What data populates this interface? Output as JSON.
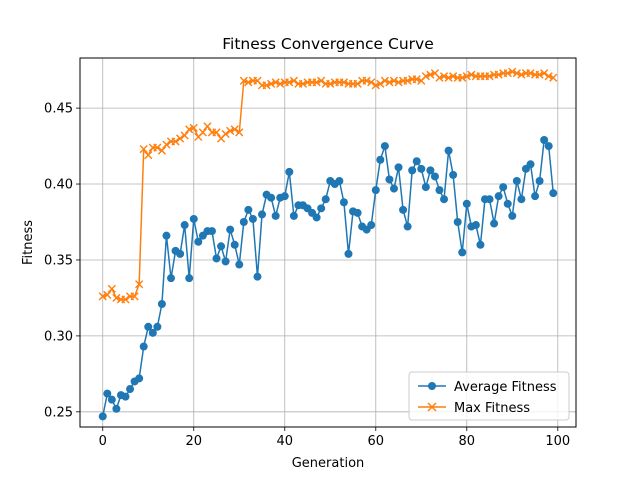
{
  "chart_data": {
    "type": "line",
    "title": "Fitness Convergence Curve",
    "xlabel": "Generation",
    "ylabel": "Fitness",
    "xlim": [
      -5,
      104
    ],
    "ylim": [
      0.24,
      0.483
    ],
    "xticks": [
      0,
      20,
      40,
      60,
      80,
      100
    ],
    "yticks": [
      0.25,
      0.3,
      0.35,
      0.4,
      0.45
    ],
    "xtick_labels": [
      "0",
      "20",
      "40",
      "60",
      "80",
      "100"
    ],
    "ytick_labels": [
      "0.25",
      "0.30",
      "0.35",
      "0.40",
      "0.45"
    ],
    "grid": true,
    "legend_position": "lower-right",
    "x": [
      0,
      1,
      2,
      3,
      4,
      5,
      6,
      7,
      8,
      9,
      10,
      11,
      12,
      13,
      14,
      15,
      16,
      17,
      18,
      19,
      20,
      21,
      22,
      23,
      24,
      25,
      26,
      27,
      28,
      29,
      30,
      31,
      32,
      33,
      34,
      35,
      36,
      37,
      38,
      39,
      40,
      41,
      42,
      43,
      44,
      45,
      46,
      47,
      48,
      49,
      50,
      51,
      52,
      53,
      54,
      55,
      56,
      57,
      58,
      59,
      60,
      61,
      62,
      63,
      64,
      65,
      66,
      67,
      68,
      69,
      70,
      71,
      72,
      73,
      74,
      75,
      76,
      77,
      78,
      79,
      80,
      81,
      82,
      83,
      84,
      85,
      86,
      87,
      88,
      89,
      90,
      91,
      92,
      93,
      94,
      95,
      96,
      97,
      98,
      99
    ],
    "series": [
      {
        "name": "Average Fitness",
        "color": "#1f77b4",
        "marker": "circle",
        "values": [
          0.247,
          0.262,
          0.258,
          0.252,
          0.261,
          0.26,
          0.265,
          0.27,
          0.272,
          0.293,
          0.306,
          0.302,
          0.306,
          0.321,
          0.366,
          0.338,
          0.356,
          0.354,
          0.373,
          0.338,
          0.377,
          0.362,
          0.366,
          0.369,
          0.369,
          0.351,
          0.359,
          0.349,
          0.37,
          0.36,
          0.347,
          0.375,
          0.383,
          0.377,
          0.339,
          0.38,
          0.393,
          0.391,
          0.379,
          0.391,
          0.392,
          0.408,
          0.379,
          0.386,
          0.386,
          0.384,
          0.381,
          0.378,
          0.384,
          0.39,
          0.402,
          0.4,
          0.402,
          0.388,
          0.354,
          0.382,
          0.381,
          0.372,
          0.37,
          0.373,
          0.396,
          0.416,
          0.425,
          0.403,
          0.397,
          0.411,
          0.383,
          0.372,
          0.409,
          0.415,
          0.41,
          0.398,
          0.409,
          0.405,
          0.396,
          0.39,
          0.422,
          0.406,
          0.375,
          0.355,
          0.387,
          0.372,
          0.373,
          0.36,
          0.39,
          0.39,
          0.374,
          0.392,
          0.398,
          0.387,
          0.379,
          0.402,
          0.39,
          0.41,
          0.413,
          0.392,
          0.402,
          0.429,
          0.425,
          0.394
        ]
      },
      {
        "name": "Max Fitness",
        "color": "#ff7f0e",
        "marker": "x",
        "values": [
          0.326,
          0.327,
          0.331,
          0.325,
          0.324,
          0.324,
          0.326,
          0.326,
          0.334,
          0.423,
          0.419,
          0.424,
          0.424,
          0.422,
          0.426,
          0.428,
          0.428,
          0.43,
          0.432,
          0.436,
          0.437,
          0.431,
          0.434,
          0.438,
          0.434,
          0.434,
          0.43,
          0.433,
          0.435,
          0.436,
          0.434,
          0.468,
          0.467,
          0.468,
          0.468,
          0.465,
          0.465,
          0.466,
          0.467,
          0.466,
          0.467,
          0.467,
          0.468,
          0.466,
          0.466,
          0.467,
          0.467,
          0.467,
          0.468,
          0.466,
          0.466,
          0.467,
          0.467,
          0.467,
          0.466,
          0.466,
          0.466,
          0.468,
          0.468,
          0.467,
          0.465,
          0.466,
          0.468,
          0.467,
          0.468,
          0.467,
          0.468,
          0.468,
          0.469,
          0.469,
          0.468,
          0.471,
          0.472,
          0.473,
          0.47,
          0.471,
          0.47,
          0.471,
          0.47,
          0.47,
          0.471,
          0.472,
          0.471,
          0.471,
          0.471,
          0.471,
          0.472,
          0.472,
          0.473,
          0.473,
          0.474,
          0.473,
          0.472,
          0.473,
          0.473,
          0.472,
          0.472,
          0.473,
          0.471,
          0.47
        ]
      }
    ]
  }
}
